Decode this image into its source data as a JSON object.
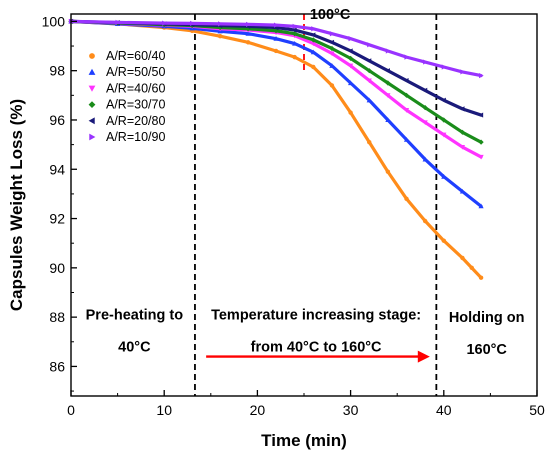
{
  "chart_data": {
    "type": "scatter",
    "xlabel": "Time (min)",
    "ylabel": "Capsules Weight Loss (%)",
    "xlim": [
      0,
      50
    ],
    "ylim": [
      84.8,
      100.3
    ],
    "xticks": [
      0,
      10,
      20,
      30,
      40,
      50
    ],
    "yticks": [
      86,
      88,
      90,
      92,
      94,
      96,
      98,
      100
    ],
    "grid": false,
    "legend_position": "top-left",
    "series": [
      {
        "name": "A/R=60/40",
        "color": "#ff8c1a",
        "marker": "circle",
        "points": [
          [
            0,
            100
          ],
          [
            5,
            99.9
          ],
          [
            10,
            99.75
          ],
          [
            13,
            99.62
          ],
          [
            16,
            99.4
          ],
          [
            19,
            99.15
          ],
          [
            22,
            98.8
          ],
          [
            24,
            98.55
          ],
          [
            26,
            98.15
          ],
          [
            28,
            97.4
          ],
          [
            30,
            96.3
          ],
          [
            32,
            95.1
          ],
          [
            34,
            93.9
          ],
          [
            36,
            92.8
          ],
          [
            38,
            91.9
          ],
          [
            40,
            91.1
          ],
          [
            42,
            90.4
          ],
          [
            43,
            90
          ],
          [
            44,
            89.6
          ]
        ]
      },
      {
        "name": "A/R=50/50",
        "color": "#1f3fff",
        "marker": "triangle-up",
        "points": [
          [
            0,
            100
          ],
          [
            5,
            99.9
          ],
          [
            10,
            99.8
          ],
          [
            13,
            99.72
          ],
          [
            16,
            99.6
          ],
          [
            19,
            99.5
          ],
          [
            22,
            99.3
          ],
          [
            24,
            99.1
          ],
          [
            26,
            98.75
          ],
          [
            28,
            98.2
          ],
          [
            30,
            97.5
          ],
          [
            32,
            96.8
          ],
          [
            34,
            96
          ],
          [
            36,
            95.2
          ],
          [
            38,
            94.4
          ],
          [
            40,
            93.7
          ],
          [
            42,
            93.1
          ],
          [
            44,
            92.5
          ]
        ]
      },
      {
        "name": "A/R=40/60",
        "color": "#ff33ff",
        "marker": "triangle-down",
        "points": [
          [
            0,
            100
          ],
          [
            5,
            99.92
          ],
          [
            10,
            99.85
          ],
          [
            13,
            99.8
          ],
          [
            16,
            99.7
          ],
          [
            19,
            99.65
          ],
          [
            22,
            99.55
          ],
          [
            24,
            99.42
          ],
          [
            26,
            99.1
          ],
          [
            28,
            98.7
          ],
          [
            30,
            98.2
          ],
          [
            32,
            97.6
          ],
          [
            34,
            97
          ],
          [
            36,
            96.4
          ],
          [
            38,
            95.9
          ],
          [
            40,
            95.4
          ],
          [
            42,
            94.9
          ],
          [
            44,
            94.5
          ]
        ]
      },
      {
        "name": "A/R=30/70",
        "color": "#1a8c1a",
        "marker": "diamond",
        "points": [
          [
            0,
            100
          ],
          [
            5,
            99.93
          ],
          [
            10,
            99.87
          ],
          [
            13,
            99.83
          ],
          [
            16,
            99.75
          ],
          [
            19,
            99.7
          ],
          [
            22,
            99.62
          ],
          [
            24,
            99.5
          ],
          [
            26,
            99.25
          ],
          [
            28,
            98.9
          ],
          [
            30,
            98.5
          ],
          [
            32,
            98
          ],
          [
            34,
            97.5
          ],
          [
            36,
            97
          ],
          [
            38,
            96.5
          ],
          [
            40,
            96
          ],
          [
            42,
            95.5
          ],
          [
            44,
            95.1
          ]
        ]
      },
      {
        "name": "A/R=20/80",
        "color": "#1a1a7a",
        "marker": "triangle-left",
        "points": [
          [
            0,
            100
          ],
          [
            5,
            99.95
          ],
          [
            10,
            99.9
          ],
          [
            13,
            99.87
          ],
          [
            16,
            99.83
          ],
          [
            19,
            99.8
          ],
          [
            22,
            99.75
          ],
          [
            24,
            99.65
          ],
          [
            26,
            99.45
          ],
          [
            28,
            99.15
          ],
          [
            30,
            98.8
          ],
          [
            32,
            98.4
          ],
          [
            34,
            98
          ],
          [
            36,
            97.6
          ],
          [
            38,
            97.2
          ],
          [
            40,
            96.8
          ],
          [
            42,
            96.45
          ],
          [
            44,
            96.2
          ]
        ]
      },
      {
        "name": "A/R=10/90",
        "color": "#9933ff",
        "marker": "triangle-right",
        "points": [
          [
            0,
            100
          ],
          [
            5,
            99.96
          ],
          [
            10,
            99.93
          ],
          [
            13,
            99.92
          ],
          [
            16,
            99.9
          ],
          [
            19,
            99.88
          ],
          [
            22,
            99.85
          ],
          [
            24,
            99.8
          ],
          [
            26,
            99.7
          ],
          [
            28,
            99.5
          ],
          [
            30,
            99.3
          ],
          [
            32,
            99.05
          ],
          [
            34,
            98.8
          ],
          [
            36,
            98.55
          ],
          [
            38,
            98.35
          ],
          [
            40,
            98.15
          ],
          [
            42,
            97.95
          ],
          [
            44,
            97.8
          ]
        ]
      }
    ],
    "vlines": [
      {
        "x": 13.3,
        "color": "#000000",
        "style": "dashed"
      },
      {
        "x": 39.2,
        "color": "#000000",
        "style": "dashed"
      },
      {
        "x": 25,
        "ymin": 98,
        "ymax": 100.3,
        "color": "#ff0000",
        "style": "dashed"
      }
    ],
    "arrow": {
      "x_start": 14.5,
      "x_end": 38.5,
      "y": 86.4,
      "color": "#ff0000"
    },
    "annotations": [
      {
        "text": "100°C",
        "x": 27.8,
        "y": 100.3
      },
      {
        "text": "Pre-heating to",
        "x": 6.8,
        "y": 88.1
      },
      {
        "text": "40°C",
        "x": 6.8,
        "y": 86.8
      },
      {
        "text": "Temperature increasing stage:",
        "x": 26.3,
        "y": 88.1
      },
      {
        "text": "from 40°C to 160°C",
        "x": 26.3,
        "y": 86.8
      },
      {
        "text": "Holding on",
        "x": 44.6,
        "y": 88
      },
      {
        "text": "160°C",
        "x": 44.6,
        "y": 86.7
      }
    ]
  }
}
